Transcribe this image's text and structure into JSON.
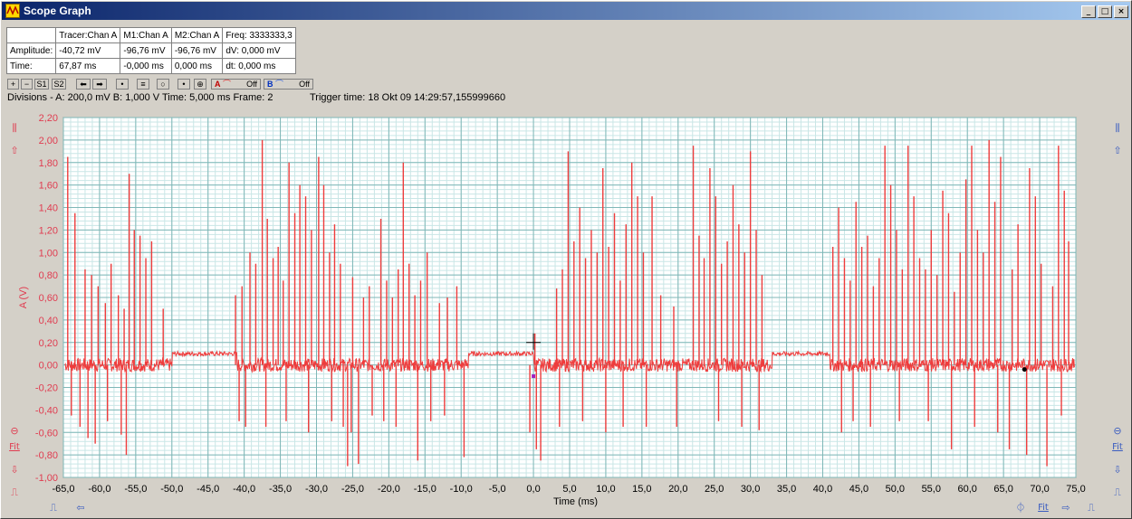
{
  "window": {
    "title": "Scope Graph"
  },
  "info": {
    "header": [
      "",
      "Tracer:Chan A",
      "M1:Chan A",
      "M2:Chan A",
      "Freq: 3333333,3"
    ],
    "rows": [
      [
        "Amplitude:",
        "-40,72 mV",
        "-96,76 mV",
        "-96,76 mV",
        "dV: 0,000 mV"
      ],
      [
        "Time:",
        "67,87 ms",
        "-0,000 ms",
        "0,000 ms",
        "dt: 0,000 ms"
      ]
    ]
  },
  "toolbar": {
    "s1": "S1",
    "s2": "S2",
    "chan_a_label": "A",
    "chan_a_state": "Off",
    "chan_b_label": "B",
    "chan_b_state": "Off"
  },
  "status": {
    "divisions": "Divisions -  A: 200,0 mV   B: 1,000 V   Time: 5,000 ms  Frame: 2",
    "trigger": "Trigger time: 18 Okt 09 14:29:57,155999660"
  },
  "buttons": {
    "fit_left": "Fit",
    "fit_right": "Fit",
    "fit_bottom": "Fit"
  },
  "colors": {
    "trace": "#ee3c3c",
    "grid_major": "#7fb7b7",
    "grid_minor": "#c9e6e6",
    "axis_text": "#e03c50",
    "plot_bg": "#ffffff"
  },
  "chart_data": {
    "type": "line",
    "xlabel": "Time (ms)",
    "ylabel": "A (V)",
    "xlim": [
      -65,
      75
    ],
    "ylim": [
      -1.0,
      2.2
    ],
    "x_ticks": [
      "-65,0",
      "-60,0",
      "-55,0",
      "-50,0",
      "-45,0",
      "-40,0",
      "-35,0",
      "-30,0",
      "-25,0",
      "-20,0",
      "-15,0",
      "-10,0",
      "-5,0",
      "0,0",
      "5,0",
      "10,0",
      "15,0",
      "20,0",
      "25,0",
      "30,0",
      "35,0",
      "40,0",
      "45,0",
      "50,0",
      "55,0",
      "60,0",
      "65,0",
      "70,0",
      "75,0"
    ],
    "y_ticks": [
      "2,20",
      "2,00",
      "1,80",
      "1,60",
      "1,40",
      "1,20",
      "1,00",
      "0,80",
      "0,60",
      "0,40",
      "0,20",
      "0,00",
      "-0,20",
      "-0,40",
      "-0,60",
      "-0,80",
      "-1,00"
    ],
    "baseline": 0.0,
    "plateaus": [
      {
        "x": [
          -50,
          -41
        ],
        "y": 0.1
      },
      {
        "x": [
          -9,
          0
        ],
        "y": 0.1
      },
      {
        "x": [
          33,
          41
        ],
        "y": 0.1
      }
    ],
    "spikes": [
      {
        "x": -64.4,
        "y": 1.85
      },
      {
        "x": -63.4,
        "y": 1.35
      },
      {
        "x": -62.0,
        "y": 0.85
      },
      {
        "x": -61.1,
        "y": 0.8
      },
      {
        "x": -60.2,
        "y": 0.7
      },
      {
        "x": -59.2,
        "y": 0.55
      },
      {
        "x": -58.4,
        "y": 0.9
      },
      {
        "x": -57.4,
        "y": 0.62
      },
      {
        "x": -56.6,
        "y": 0.5
      },
      {
        "x": -55.9,
        "y": 1.7
      },
      {
        "x": -55.2,
        "y": 1.2
      },
      {
        "x": -54.4,
        "y": 1.15
      },
      {
        "x": -53.6,
        "y": 0.95
      },
      {
        "x": -52.8,
        "y": 1.1
      },
      {
        "x": -51.2,
        "y": 0.5
      },
      {
        "x": -41.2,
        "y": 0.62
      },
      {
        "x": -40.3,
        "y": 0.7
      },
      {
        "x": -39.2,
        "y": 1.0
      },
      {
        "x": -38.4,
        "y": 0.9
      },
      {
        "x": -37.5,
        "y": 2.0
      },
      {
        "x": -36.8,
        "y": 1.3
      },
      {
        "x": -36.0,
        "y": 0.95
      },
      {
        "x": -35.3,
        "y": 1.05
      },
      {
        "x": -34.6,
        "y": 0.75
      },
      {
        "x": -33.8,
        "y": 1.8
      },
      {
        "x": -33.0,
        "y": 1.35
      },
      {
        "x": -32.3,
        "y": 1.6
      },
      {
        "x": -31.5,
        "y": 1.5
      },
      {
        "x": -30.7,
        "y": 1.2
      },
      {
        "x": -29.7,
        "y": 1.85
      },
      {
        "x": -29.0,
        "y": 1.6
      },
      {
        "x": -28.2,
        "y": 1.0
      },
      {
        "x": -27.5,
        "y": 1.25
      },
      {
        "x": -26.7,
        "y": 0.9
      },
      {
        "x": -25.0,
        "y": 0.78
      },
      {
        "x": -23.5,
        "y": 0.6
      },
      {
        "x": -22.7,
        "y": 0.7
      },
      {
        "x": -21.1,
        "y": 1.3
      },
      {
        "x": -20.3,
        "y": 0.75
      },
      {
        "x": -19.5,
        "y": 0.6
      },
      {
        "x": -18.7,
        "y": 0.85
      },
      {
        "x": -18.0,
        "y": 1.8
      },
      {
        "x": -17.2,
        "y": 0.9
      },
      {
        "x": -16.4,
        "y": 0.62
      },
      {
        "x": -15.6,
        "y": 0.75
      },
      {
        "x": -14.7,
        "y": 1.0
      },
      {
        "x": -13.0,
        "y": 0.55
      },
      {
        "x": -11.9,
        "y": 0.6
      },
      {
        "x": -10.6,
        "y": 0.7
      },
      {
        "x": 0.2,
        "y": 0.28
      },
      {
        "x": 3.2,
        "y": 0.68
      },
      {
        "x": 4.0,
        "y": 0.85
      },
      {
        "x": 4.8,
        "y": 1.9
      },
      {
        "x": 5.6,
        "y": 1.1
      },
      {
        "x": 6.4,
        "y": 1.4
      },
      {
        "x": 7.2,
        "y": 0.95
      },
      {
        "x": 8.0,
        "y": 1.2
      },
      {
        "x": 8.8,
        "y": 1.0
      },
      {
        "x": 9.6,
        "y": 1.75
      },
      {
        "x": 10.4,
        "y": 1.05
      },
      {
        "x": 11.2,
        "y": 1.35
      },
      {
        "x": 12.0,
        "y": 0.75
      },
      {
        "x": 12.8,
        "y": 1.25
      },
      {
        "x": 13.6,
        "y": 1.8
      },
      {
        "x": 14.4,
        "y": 1.5
      },
      {
        "x": 15.2,
        "y": 1.0
      },
      {
        "x": 16.4,
        "y": 1.5
      },
      {
        "x": 17.6,
        "y": 0.62
      },
      {
        "x": 19.4,
        "y": 0.52
      },
      {
        "x": 22.1,
        "y": 1.95
      },
      {
        "x": 22.9,
        "y": 1.15
      },
      {
        "x": 23.6,
        "y": 0.95
      },
      {
        "x": 24.4,
        "y": 1.75
      },
      {
        "x": 25.2,
        "y": 1.5
      },
      {
        "x": 26.0,
        "y": 0.9
      },
      {
        "x": 26.8,
        "y": 1.1
      },
      {
        "x": 27.6,
        "y": 1.6
      },
      {
        "x": 28.4,
        "y": 1.25
      },
      {
        "x": 29.2,
        "y": 1.0
      },
      {
        "x": 30.0,
        "y": 1.9
      },
      {
        "x": 30.8,
        "y": 1.2
      },
      {
        "x": 31.6,
        "y": 0.8
      },
      {
        "x": 41.4,
        "y": 1.05
      },
      {
        "x": 42.2,
        "y": 1.4
      },
      {
        "x": 43.0,
        "y": 0.95
      },
      {
        "x": 43.8,
        "y": 0.75
      },
      {
        "x": 44.6,
        "y": 1.45
      },
      {
        "x": 45.4,
        "y": 1.05
      },
      {
        "x": 46.2,
        "y": 1.15
      },
      {
        "x": 47.0,
        "y": 0.7
      },
      {
        "x": 47.8,
        "y": 0.95
      },
      {
        "x": 48.6,
        "y": 1.95
      },
      {
        "x": 49.4,
        "y": 1.6
      },
      {
        "x": 50.2,
        "y": 1.2
      },
      {
        "x": 51.0,
        "y": 0.85
      },
      {
        "x": 51.8,
        "y": 1.95
      },
      {
        "x": 52.6,
        "y": 1.5
      },
      {
        "x": 53.4,
        "y": 0.95
      },
      {
        "x": 54.2,
        "y": 0.85
      },
      {
        "x": 55.0,
        "y": 1.2
      },
      {
        "x": 55.8,
        "y": 0.8
      },
      {
        "x": 56.6,
        "y": 1.55
      },
      {
        "x": 57.4,
        "y": 1.35
      },
      {
        "x": 58.2,
        "y": 0.65
      },
      {
        "x": 59.0,
        "y": 1.0
      },
      {
        "x": 59.8,
        "y": 1.65
      },
      {
        "x": 60.6,
        "y": 1.95
      },
      {
        "x": 61.4,
        "y": 1.2
      },
      {
        "x": 62.2,
        "y": 1.0
      },
      {
        "x": 63.0,
        "y": 2.0
      },
      {
        "x": 63.8,
        "y": 1.45
      },
      {
        "x": 64.6,
        "y": 1.85
      },
      {
        "x": 66.2,
        "y": 0.85
      },
      {
        "x": 67.0,
        "y": 1.25
      },
      {
        "x": 68.6,
        "y": 1.75
      },
      {
        "x": 69.4,
        "y": 1.5
      },
      {
        "x": 70.2,
        "y": 0.9
      },
      {
        "x": 71.8,
        "y": 0.7
      },
      {
        "x": 72.6,
        "y": 1.95
      },
      {
        "x": 73.4,
        "y": 1.55
      },
      {
        "x": 74.0,
        "y": 1.1
      }
    ],
    "dips": [
      {
        "x": -63.9,
        "y": -0.45
      },
      {
        "x": -62.7,
        "y": -0.55
      },
      {
        "x": -61.6,
        "y": -0.65
      },
      {
        "x": -60.6,
        "y": -0.7
      },
      {
        "x": -58.9,
        "y": -0.5
      },
      {
        "x": -57.0,
        "y": -0.62
      },
      {
        "x": -56.3,
        "y": -0.8
      },
      {
        "x": -40.7,
        "y": -0.5
      },
      {
        "x": -39.8,
        "y": -0.55
      },
      {
        "x": -37.0,
        "y": -0.55
      },
      {
        "x": -34.2,
        "y": -0.5
      },
      {
        "x": -31.1,
        "y": -0.6
      },
      {
        "x": -27.9,
        "y": -0.5
      },
      {
        "x": -26.3,
        "y": -0.55
      },
      {
        "x": -25.7,
        "y": -0.9
      },
      {
        "x": -25.2,
        "y": -0.6
      },
      {
        "x": -24.2,
        "y": -0.88
      },
      {
        "x": -22.3,
        "y": -0.45
      },
      {
        "x": -20.7,
        "y": -0.5
      },
      {
        "x": -19.0,
        "y": -0.55
      },
      {
        "x": -16.0,
        "y": -0.85
      },
      {
        "x": -14.2,
        "y": -0.5
      },
      {
        "x": -12.3,
        "y": -0.45
      },
      {
        "x": -9.6,
        "y": -0.82
      },
      {
        "x": -0.5,
        "y": -0.6
      },
      {
        "x": 0.4,
        "y": -0.75
      },
      {
        "x": 1.0,
        "y": -0.85
      },
      {
        "x": 3.6,
        "y": -0.55
      },
      {
        "x": 6.8,
        "y": -0.5
      },
      {
        "x": 10.0,
        "y": -0.6
      },
      {
        "x": 12.4,
        "y": -0.55
      },
      {
        "x": 15.6,
        "y": -0.55
      },
      {
        "x": 19.8,
        "y": -0.55
      },
      {
        "x": 25.6,
        "y": -0.5
      },
      {
        "x": 28.8,
        "y": -0.55
      },
      {
        "x": 31.2,
        "y": -0.58
      },
      {
        "x": 42.6,
        "y": -0.6
      },
      {
        "x": 44.2,
        "y": -0.5
      },
      {
        "x": 46.6,
        "y": -0.55
      },
      {
        "x": 50.6,
        "y": -0.5
      },
      {
        "x": 54.6,
        "y": -0.5
      },
      {
        "x": 57.8,
        "y": -0.75
      },
      {
        "x": 61.0,
        "y": -0.55
      },
      {
        "x": 64.2,
        "y": -0.6
      },
      {
        "x": 65.8,
        "y": -0.75
      },
      {
        "x": 68.2,
        "y": -0.8
      },
      {
        "x": 71.0,
        "y": -0.9
      },
      {
        "x": 73.0,
        "y": -0.45
      }
    ],
    "grid": true
  }
}
